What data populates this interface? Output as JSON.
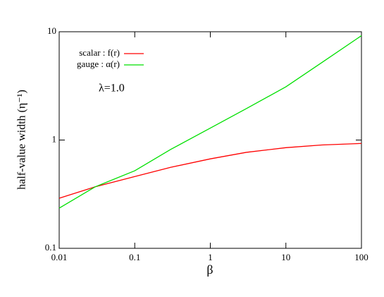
{
  "chart_data": {
    "type": "line",
    "xlabel": "β",
    "ylabel": "half-value width (η⁻¹)",
    "annotation": "λ=1.0",
    "x": [
      0.01,
      0.03,
      0.1,
      0.3,
      1,
      3,
      10,
      30,
      100
    ],
    "series": [
      {
        "name": "scalar : f(r)",
        "color": "#ff0000",
        "values": [
          0.29,
          0.37,
          0.46,
          0.56,
          0.67,
          0.77,
          0.85,
          0.9,
          0.93
        ]
      },
      {
        "name": "gauge : α(r)",
        "color": "#00e000",
        "values": [
          0.235,
          0.37,
          0.52,
          0.82,
          1.29,
          1.95,
          3.1,
          5.2,
          9.2
        ]
      }
    ],
    "xlim": [
      0.01,
      100
    ],
    "xticks": [
      0.01,
      0.1,
      1,
      10,
      100
    ],
    "ylim": [
      0.1,
      10
    ],
    "yticks": [
      0.1,
      1,
      10
    ],
    "xscale": "log",
    "yscale": "log",
    "legend": "upper left"
  }
}
